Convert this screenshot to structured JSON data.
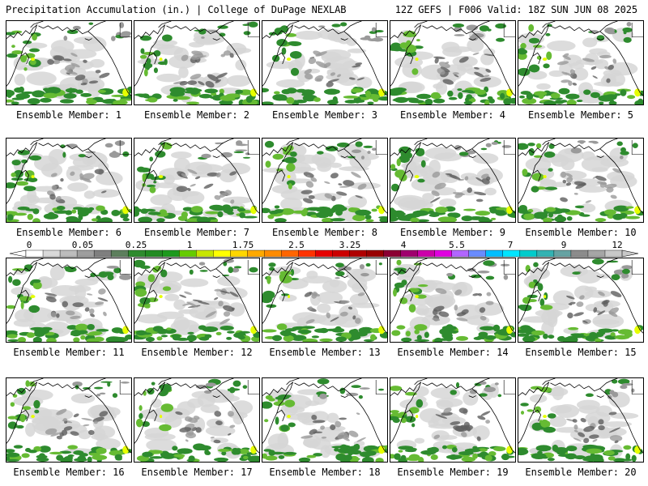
{
  "header": {
    "left": "Precipitation Accumulation (in.) | College of DuPage NEXLAB",
    "right": "12Z GEFS | F006 Valid: 18Z SUN JUN 08 2025"
  },
  "label_prefix": "Ensemble Member: ",
  "members": [
    1,
    2,
    3,
    4,
    5,
    6,
    7,
    8,
    9,
    10,
    11,
    12,
    13,
    14,
    15,
    16,
    17,
    18,
    19,
    20
  ],
  "colorbar": {
    "tick_labels": [
      "0",
      "0.05",
      "0.25",
      "1",
      "1.75",
      "2.5",
      "3.25",
      "4",
      "5.5",
      "7",
      "9",
      "12"
    ],
    "colors": [
      "#ffffff",
      "#d9d9d9",
      "#bdbdbd",
      "#9e9e9e",
      "#7f7f7f",
      "#5d7f5d",
      "#2e8b2e",
      "#228b22",
      "#1d9a1d",
      "#66cc00",
      "#c8e600",
      "#ffff00",
      "#ffd700",
      "#ffaa00",
      "#ff8c00",
      "#ff6600",
      "#ff3300",
      "#e60000",
      "#cc0000",
      "#b00000",
      "#990000",
      "#8b0033",
      "#a0006e",
      "#cc00aa",
      "#e000e0",
      "#b266ff",
      "#6a8cff",
      "#00bfff",
      "#00e5ff",
      "#00cccc",
      "#33b3b3",
      "#66a3a3",
      "#8c8c8c",
      "#a6a6a6",
      "#c8c8c8"
    ]
  },
  "map_colors": {
    "light_gray": "#d6d6d6",
    "mid_gray": "#9a9a9a",
    "dark_gray": "#5e5e5e",
    "green": "#2e8b2e",
    "light_green": "#66bb33",
    "yellow": "#e6ff00",
    "coast": "#000000"
  }
}
